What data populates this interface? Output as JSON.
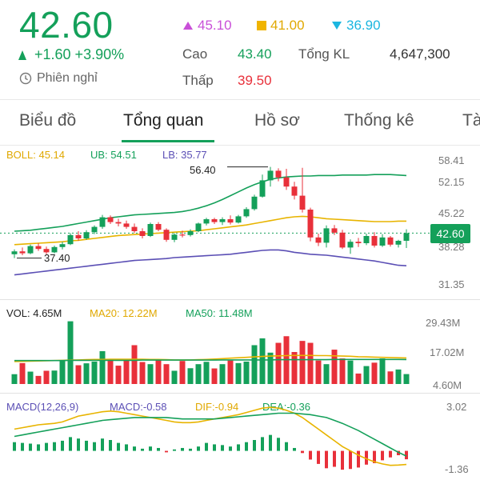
{
  "header": {
    "price": "42.60",
    "change": "+1.60 +3.90%",
    "session": "Phiên nghỉ",
    "ceiling": "45.10",
    "reference": "41.00",
    "floor": "36.90",
    "high_label": "Cao",
    "high_value": "43.40",
    "low_label": "Thấp",
    "low_value": "39.50",
    "volume_label": "Tổng KL",
    "volume_value": "4,647,300",
    "colors": {
      "up": "#14a05a",
      "down": "#e8303a",
      "ceiling": "#c94fd8",
      "reference": "#f0b400",
      "floor": "#1bb6e0"
    }
  },
  "tabs": [
    {
      "label": "Biểu đồ",
      "active": false
    },
    {
      "label": "Tổng quan",
      "active": true
    },
    {
      "label": "Hồ sơ",
      "active": false
    },
    {
      "label": "Thống kê",
      "active": false
    },
    {
      "label": "Tà",
      "active": false
    }
  ],
  "price_chart": {
    "legend": {
      "boll": "BOLL: 45.14",
      "ub": "UB: 54.51",
      "lb": "LB: 35.77"
    },
    "axis_labels": [
      "58.41",
      "52.15",
      "45.22",
      "38.28",
      "31.35"
    ],
    "current_price": "42.60",
    "max_annotation": "56.40",
    "min_annotation": "37.40"
  },
  "volume_chart": {
    "legend": {
      "vol": "VOL: 4.65M",
      "ma20": "MA20: 12.22M",
      "ma50": "MA50: 11.48M"
    },
    "axis_labels": [
      "29.43M",
      "17.02M",
      "4.60M"
    ]
  },
  "macd_chart": {
    "legend": {
      "macd_params": "MACD(12,26,9)",
      "macd": "MACD:-0.58",
      "dif": "DIF:-0.94",
      "dea": "DEA:-0.36"
    },
    "axis_labels": [
      "3.02",
      "-1.36"
    ]
  },
  "chart_data": {
    "type": "candlestick",
    "candles": [
      {
        "o": 38.2,
        "h": 39.2,
        "l": 37.4,
        "c": 38.8
      },
      {
        "o": 38.8,
        "h": 39.6,
        "l": 38.0,
        "c": 38.4
      },
      {
        "o": 38.4,
        "h": 40.2,
        "l": 38.2,
        "c": 39.9
      },
      {
        "o": 39.9,
        "h": 40.5,
        "l": 38.9,
        "c": 39.3
      },
      {
        "o": 39.3,
        "h": 39.8,
        "l": 38.2,
        "c": 38.6
      },
      {
        "o": 38.6,
        "h": 40.0,
        "l": 38.4,
        "c": 39.7
      },
      {
        "o": 39.7,
        "h": 40.8,
        "l": 39.2,
        "c": 40.3
      },
      {
        "o": 40.3,
        "h": 42.6,
        "l": 40.1,
        "c": 42.2
      },
      {
        "o": 42.2,
        "h": 43.0,
        "l": 41.0,
        "c": 41.5
      },
      {
        "o": 41.5,
        "h": 43.2,
        "l": 41.2,
        "c": 42.8
      },
      {
        "o": 42.8,
        "h": 44.2,
        "l": 42.4,
        "c": 43.9
      },
      {
        "o": 43.9,
        "h": 46.4,
        "l": 43.5,
        "c": 45.9
      },
      {
        "o": 45.9,
        "h": 46.3,
        "l": 44.5,
        "c": 44.9
      },
      {
        "o": 44.9,
        "h": 45.6,
        "l": 44.0,
        "c": 44.6
      },
      {
        "o": 44.6,
        "h": 45.2,
        "l": 43.5,
        "c": 43.9
      },
      {
        "o": 43.9,
        "h": 44.6,
        "l": 42.6,
        "c": 43.0
      },
      {
        "o": 43.0,
        "h": 43.6,
        "l": 41.5,
        "c": 42.0
      },
      {
        "o": 42.0,
        "h": 44.8,
        "l": 41.8,
        "c": 44.5
      },
      {
        "o": 44.5,
        "h": 44.9,
        "l": 43.0,
        "c": 43.3
      },
      {
        "o": 43.3,
        "h": 43.6,
        "l": 40.8,
        "c": 41.2
      },
      {
        "o": 41.2,
        "h": 42.6,
        "l": 40.7,
        "c": 42.3
      },
      {
        "o": 42.3,
        "h": 43.1,
        "l": 41.7,
        "c": 42.2
      },
      {
        "o": 42.2,
        "h": 43.4,
        "l": 41.9,
        "c": 43.0
      },
      {
        "o": 43.0,
        "h": 44.8,
        "l": 42.8,
        "c": 44.6
      },
      {
        "o": 44.6,
        "h": 45.8,
        "l": 44.2,
        "c": 45.5
      },
      {
        "o": 45.5,
        "h": 45.8,
        "l": 44.5,
        "c": 44.9
      },
      {
        "o": 44.9,
        "h": 45.9,
        "l": 44.3,
        "c": 45.5
      },
      {
        "o": 45.5,
        "h": 46.3,
        "l": 44.4,
        "c": 44.8
      },
      {
        "o": 44.8,
        "h": 46.4,
        "l": 44.6,
        "c": 46.1
      },
      {
        "o": 46.1,
        "h": 48.0,
        "l": 45.8,
        "c": 47.6
      },
      {
        "o": 47.6,
        "h": 50.6,
        "l": 47.3,
        "c": 50.2
      },
      {
        "o": 50.2,
        "h": 54.8,
        "l": 50.0,
        "c": 53.6
      },
      {
        "o": 53.6,
        "h": 56.4,
        "l": 52.3,
        "c": 55.6
      },
      {
        "o": 55.6,
        "h": 56.1,
        "l": 53.4,
        "c": 54.2
      },
      {
        "o": 54.2,
        "h": 56.0,
        "l": 51.6,
        "c": 52.3
      },
      {
        "o": 52.3,
        "h": 53.3,
        "l": 49.6,
        "c": 50.4
      },
      {
        "o": 50.4,
        "h": 56.2,
        "l": 46.9,
        "c": 47.5
      },
      {
        "o": 47.5,
        "h": 47.9,
        "l": 40.9,
        "c": 41.7
      },
      {
        "o": 41.7,
        "h": 42.5,
        "l": 39.9,
        "c": 40.6
      },
      {
        "o": 40.6,
        "h": 44.2,
        "l": 39.6,
        "c": 43.6
      },
      {
        "o": 43.6,
        "h": 44.3,
        "l": 42.2,
        "c": 42.7
      },
      {
        "o": 42.7,
        "h": 43.3,
        "l": 39.3,
        "c": 39.6
      },
      {
        "o": 39.6,
        "h": 41.3,
        "l": 38.3,
        "c": 40.8
      },
      {
        "o": 40.8,
        "h": 41.6,
        "l": 39.7,
        "c": 40.5
      },
      {
        "o": 40.5,
        "h": 42.5,
        "l": 40.1,
        "c": 42.0
      },
      {
        "o": 42.0,
        "h": 42.8,
        "l": 39.6,
        "c": 40.0
      },
      {
        "o": 40.0,
        "h": 42.4,
        "l": 39.7,
        "c": 41.7
      },
      {
        "o": 41.7,
        "h": 42.0,
        "l": 39.8,
        "c": 40.2
      },
      {
        "o": 40.2,
        "h": 41.2,
        "l": 39.6,
        "c": 41.0
      },
      {
        "o": 41.0,
        "h": 43.4,
        "l": 39.5,
        "c": 42.6
      }
    ],
    "boll_mid": [
      40.2,
      40.3,
      40.4,
      40.5,
      40.6,
      40.7,
      40.8,
      41.0,
      41.1,
      41.3,
      41.5,
      41.7,
      41.9,
      42.1,
      42.2,
      42.3,
      42.4,
      42.5,
      42.6,
      42.7,
      42.8,
      42.9,
      43.0,
      43.1,
      43.3,
      43.5,
      43.7,
      43.9,
      44.1,
      44.3,
      44.6,
      44.9,
      45.2,
      45.5,
      45.8,
      46.0,
      46.1,
      46.0,
      45.8,
      45.6,
      45.5,
      45.4,
      45.3,
      45.2,
      45.1,
      45.0,
      45.0,
      45.0,
      45.1,
      45.1
    ],
    "boll_ub": [
      43.0,
      43.1,
      43.2,
      43.4,
      43.6,
      43.8,
      44.0,
      44.3,
      44.6,
      44.9,
      45.2,
      45.5,
      45.8,
      46.0,
      46.2,
      46.4,
      46.5,
      46.6,
      46.7,
      46.8,
      46.9,
      47.1,
      47.4,
      47.8,
      48.3,
      48.9,
      49.6,
      50.4,
      51.2,
      52.0,
      52.7,
      53.3,
      53.8,
      54.1,
      54.3,
      54.4,
      54.5,
      54.5,
      54.6,
      54.6,
      54.6,
      54.7,
      54.7,
      54.7,
      54.7,
      54.8,
      54.8,
      54.8,
      54.7,
      54.6
    ],
    "boll_lb": [
      33.9,
      34.1,
      34.3,
      34.5,
      34.7,
      34.9,
      35.1,
      35.3,
      35.5,
      35.7,
      35.9,
      36.1,
      36.3,
      36.5,
      36.7,
      36.9,
      37.0,
      37.1,
      37.2,
      37.3,
      37.5,
      37.6,
      37.7,
      37.8,
      37.9,
      38.0,
      38.1,
      38.2,
      38.4,
      38.6,
      38.8,
      39.0,
      39.1,
      39.1,
      38.9,
      38.6,
      38.4,
      38.2,
      38.1,
      38.0,
      37.8,
      37.6,
      37.4,
      37.2,
      37.0,
      36.8,
      36.5,
      36.2,
      35.9,
      35.8
    ],
    "volume": [
      4.6,
      9.8,
      5.8,
      3.8,
      6.2,
      6.3,
      10.9,
      29.4,
      8.8,
      9.7,
      10.5,
      15.4,
      11.7,
      8.6,
      11.3,
      18.2,
      10.3,
      9.3,
      11.3,
      9.3,
      6.2,
      10.8,
      7.4,
      9.3,
      10.4,
      7.3,
      9.3,
      11.0,
      9.8,
      10.5,
      18.2,
      21.4,
      14.7,
      19.3,
      22.4,
      15.0,
      20.2,
      19.3,
      11.0,
      9.3,
      16.1,
      12.0,
      11.0,
      4.9,
      8.4,
      10.0,
      12.0,
      5.9,
      6.8,
      4.65
    ],
    "vol_ma20": [
      10.5,
      10.6,
      10.7,
      10.8,
      10.9,
      11.0,
      11.1,
      11.2,
      11.3,
      11.4,
      11.5,
      11.5,
      11.6,
      11.6,
      11.6,
      11.6,
      11.6,
      11.5,
      11.5,
      11.4,
      11.3,
      11.3,
      11.3,
      11.4,
      11.5,
      11.7,
      11.9,
      12.1,
      12.3,
      12.5,
      12.7,
      12.9,
      13.1,
      13.2,
      13.3,
      13.4,
      13.4,
      13.4,
      13.3,
      13.3,
      13.2,
      13.1,
      13.0,
      12.8,
      12.7,
      12.6,
      12.5,
      12.4,
      12.3,
      12.22
    ],
    "vol_ma50": [
      11.0,
      11.0,
      11.0,
      11.0,
      11.0,
      11.0,
      11.0,
      11.1,
      11.1,
      11.1,
      11.1,
      11.1,
      11.1,
      11.1,
      11.1,
      11.1,
      11.2,
      11.2,
      11.2,
      11.2,
      11.2,
      11.2,
      11.2,
      11.2,
      11.2,
      11.2,
      11.3,
      11.3,
      11.3,
      11.3,
      11.3,
      11.3,
      11.3,
      11.4,
      11.4,
      11.4,
      11.4,
      11.4,
      11.4,
      11.4,
      11.5,
      11.5,
      11.5,
      11.5,
      11.5,
      11.5,
      11.5,
      11.5,
      11.5,
      11.48
    ],
    "macd_hist": [
      0.6,
      0.55,
      0.5,
      0.45,
      0.55,
      0.6,
      0.7,
      0.95,
      0.85,
      0.7,
      0.6,
      0.85,
      0.75,
      0.55,
      0.45,
      0.3,
      0.15,
      0.3,
      0.2,
      -0.1,
      0.1,
      0.2,
      0.15,
      0.3,
      0.55,
      0.45,
      0.4,
      0.3,
      0.45,
      0.6,
      0.75,
      0.95,
      1.1,
      0.9,
      0.6,
      0.2,
      -0.15,
      -0.6,
      -0.9,
      -1.2,
      -1.1,
      -1.3,
      -1.25,
      -1.15,
      -0.95,
      -0.85,
      -0.65,
      -0.45,
      -0.3,
      -0.58
    ],
    "dif": [
      1.5,
      1.6,
      1.7,
      1.8,
      1.85,
      1.9,
      2.0,
      2.2,
      2.4,
      2.5,
      2.6,
      2.7,
      2.75,
      2.7,
      2.6,
      2.5,
      2.4,
      2.3,
      2.2,
      2.1,
      2.0,
      1.95,
      1.95,
      2.0,
      2.1,
      2.2,
      2.3,
      2.4,
      2.5,
      2.65,
      2.8,
      2.95,
      3.0,
      2.95,
      2.8,
      2.6,
      2.3,
      1.9,
      1.5,
      1.1,
      0.7,
      0.3,
      0.0,
      -0.3,
      -0.55,
      -0.75,
      -0.9,
      -1.0,
      -0.98,
      -0.94
    ],
    "dea": [
      1.0,
      1.1,
      1.2,
      1.3,
      1.4,
      1.5,
      1.6,
      1.7,
      1.8,
      1.9,
      2.0,
      2.1,
      2.15,
      2.2,
      2.25,
      2.3,
      2.3,
      2.3,
      2.3,
      2.3,
      2.25,
      2.2,
      2.2,
      2.2,
      2.2,
      2.2,
      2.25,
      2.3,
      2.35,
      2.4,
      2.45,
      2.5,
      2.55,
      2.6,
      2.6,
      2.6,
      2.55,
      2.5,
      2.4,
      2.3,
      2.1,
      1.9,
      1.65,
      1.4,
      1.1,
      0.8,
      0.5,
      0.2,
      -0.1,
      -0.36
    ],
    "price_ylim": [
      29.0,
      60.0
    ],
    "volume_ylim": [
      0,
      30
    ],
    "macd_ylim": [
      -1.9,
      3.4
    ]
  }
}
